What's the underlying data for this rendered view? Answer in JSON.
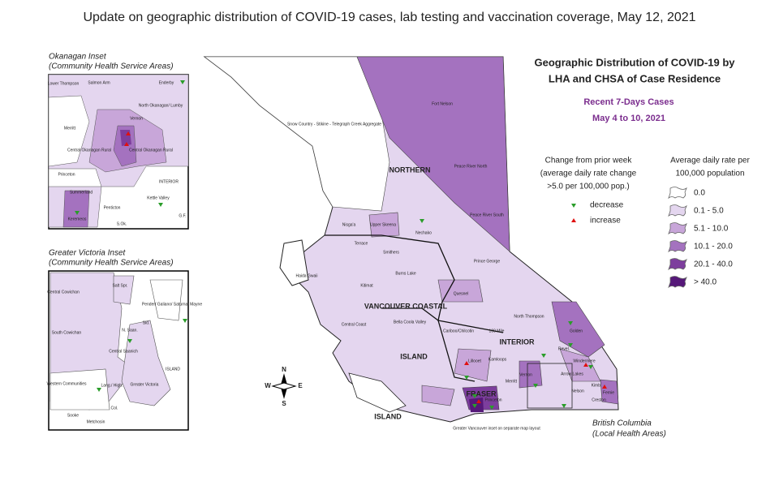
{
  "title": "Update on geographic distribution of COVID-19 cases, lab testing and vaccination coverage, May 12, 2021",
  "map": {
    "title": [
      "Geographic Distribution of COVID-19 by",
      "LHA and CHSA of Case Residence"
    ],
    "subtitle": "Recent 7-Days Cases",
    "period": "May 4 to 10, 2021",
    "caption": [
      "British Columbia",
      "(Local Health Areas)"
    ],
    "regions": [
      "NORTHERN",
      "INTERIOR",
      "VANCOUVER COASTAL",
      "ISLAND",
      "ISLAND",
      "FRASER"
    ],
    "labels": [
      "Fort Nelson",
      "Peace River North",
      "Peace River South",
      "Snow Country - Stikine - Telegraph Creek Aggregate",
      "Nisga'a",
      "Upper Skeena",
      "Nechako",
      "Terrace",
      "Smithers",
      "Prince George",
      "Burns Lake",
      "Haida Gwaii",
      "Kitimat",
      "Quesnel",
      "Central Coast",
      "Bella Coola Valley",
      "Cariboo/Chilcotin",
      "100 Mile",
      "North Thompson",
      "Golden",
      "Revel.",
      "Kamloops",
      "Lillooet",
      "Arrow Lakes",
      "Nelson",
      "Creston",
      "Fernie",
      "Kimb.",
      "Windermere",
      "Vernon",
      "Merritt",
      "Princeton",
      "Greater Vancouver inset on separate map layout"
    ],
    "compass": [
      "N",
      "S",
      "E",
      "W"
    ]
  },
  "change_legend": {
    "title": [
      "Change from prior week",
      "(average daily rate change",
      ">5.0 per 100,000 pop.)"
    ],
    "items": [
      {
        "label": "decrease",
        "color": "#2a9d2a"
      },
      {
        "label": "increase",
        "color": "#e01010"
      }
    ]
  },
  "rate_legend": {
    "title": [
      "Average daily rate per",
      "100,000 population"
    ],
    "items": [
      {
        "label": "0.0",
        "color": "#ffffff"
      },
      {
        "label": "0.1 - 5.0",
        "color": "#e4d6ef"
      },
      {
        "label": "5.1 - 10.0",
        "color": "#c8a6d9"
      },
      {
        "label": "10.1 - 20.0",
        "color": "#a472bf"
      },
      {
        "label": "20.1 - 40.0",
        "color": "#7d3e9d"
      },
      {
        "label": "> 40.0",
        "color": "#561879"
      }
    ]
  },
  "okanagan_inset": {
    "title": [
      "Okanagan Inset",
      "(Community Health Service Areas)"
    ],
    "labels": [
      "Lower Thompson",
      "Salmon Arm",
      "Enderby",
      "North Okanagan/ Lumby",
      "Merritt",
      "Vernon",
      "Central Okanagan Rural",
      "Central Okanagan Rural",
      "Princeton",
      "INTERIOR",
      "Summerland",
      "Kettle Valley",
      "Keremeos",
      "Penticton",
      "S.Ok.",
      "G.F."
    ]
  },
  "victoria_inset": {
    "title": [
      "Greater Victoria Inset",
      "(Community Health Service Areas)"
    ],
    "labels": [
      "Central Cowichan",
      "Salt Spr.",
      "Pender/ Galiano/ Saturna/ Mayne",
      "Sid.",
      "N. Saan.",
      "South Cowichan",
      "Central Saanich",
      "ISLAND",
      "Western Communities",
      "Lang./ High.",
      "Greater Victoria",
      "Col.",
      "Sooke",
      "Metchosin"
    ]
  }
}
